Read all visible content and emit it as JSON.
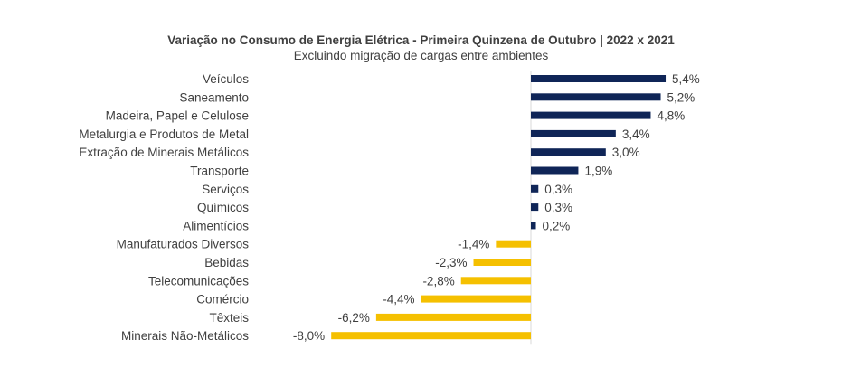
{
  "chart_data": {
    "type": "bar",
    "orientation": "horizontal",
    "title": "Variação no Consumo de Energia Elétrica - Primeira Quinzena de Outubro | 2022 x 2021",
    "subtitle": "Excluindo migração de cargas entre ambientes",
    "xlabel": "",
    "ylabel": "",
    "grid": false,
    "legend": "none",
    "xlim": [
      -8.0,
      5.4
    ],
    "categories": [
      "Veículos",
      "Saneamento",
      "Madeira, Papel e Celulose",
      "Metalurgia e Produtos de Metal",
      "Extração de Minerais Metálicos",
      "Transporte",
      "Serviços",
      "Químicos",
      "Alimentícios",
      "Manufaturados Diversos",
      "Bebidas",
      "Telecomunicações",
      "Comércio",
      "Têxteis",
      "Minerais Não-Metálicos"
    ],
    "values": [
      5.4,
      5.2,
      4.8,
      3.4,
      3.0,
      1.9,
      0.3,
      0.3,
      0.2,
      -1.4,
      -2.3,
      -2.8,
      -4.4,
      -6.2,
      -8.0
    ],
    "data_labels": [
      "5,4%",
      "5,2%",
      "4,8%",
      "3,4%",
      "3,0%",
      "1,9%",
      "0,3%",
      "0,3%",
      "0,2%",
      "-1,4%",
      "-2,3%",
      "-2,8%",
      "-4,4%",
      "-6,2%",
      "-8,0%"
    ],
    "colors": {
      "positive": "#0f2557",
      "negative": "#f5c000",
      "axis": "#d9d9d9",
      "text": "#404040"
    }
  }
}
